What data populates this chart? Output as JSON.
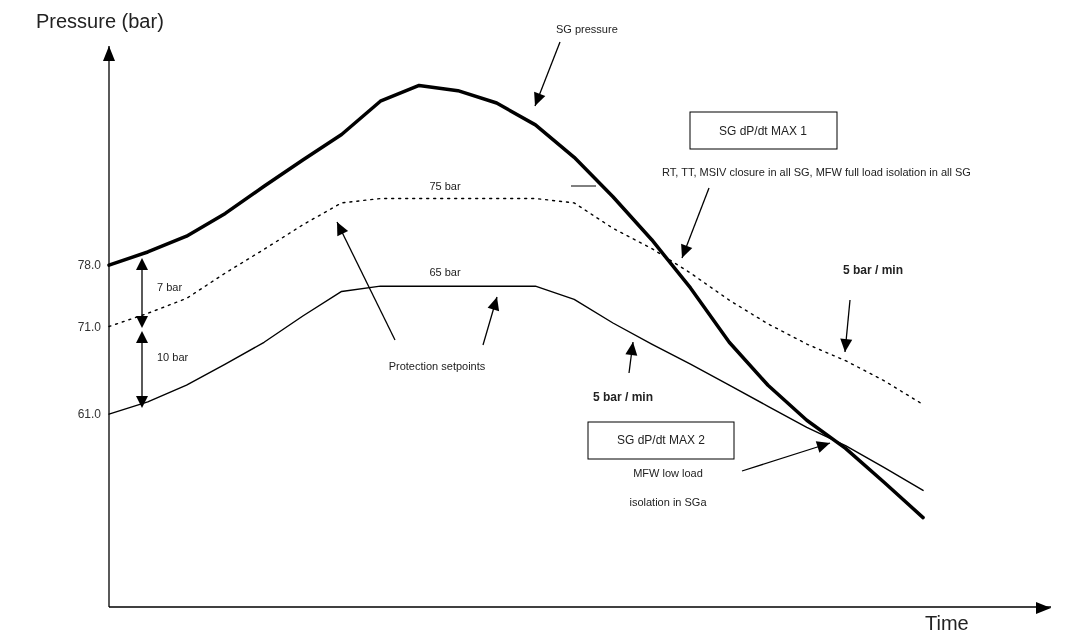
{
  "chart_data": {
    "type": "line",
    "ylabel": "Pressure (bar)",
    "xlabel": "Time",
    "categories": [
      null,
      null,
      null,
      null,
      null,
      null,
      null,
      null,
      null,
      null,
      null,
      null,
      null,
      null,
      null,
      null,
      null,
      null,
      null,
      null,
      null,
      null
    ],
    "ylim": [
      39,
      103
    ],
    "yticks": [
      {
        "value": 61,
        "label": "61.0"
      },
      {
        "value": 71,
        "label": "71.0"
      },
      {
        "value": 78,
        "label": "78.0"
      }
    ],
    "tick_labels": "y",
    "grid": false,
    "marker": "none",
    "series": [
      {
        "color": "#000000",
        "line_style": "solid",
        "values": [
          78.0,
          79.5,
          81.3,
          83.9,
          87.0,
          90.0,
          92.9,
          96.7,
          98.5,
          97.9,
          96.5,
          94.0,
          90.3,
          85.8,
          80.9,
          75.4,
          69.2,
          64.3,
          60.3,
          57.1,
          53.2,
          49.2
        ]
      },
      {
        "color": "#000000",
        "line_style": "dotted",
        "values": [
          71.0,
          72.5,
          74.2,
          77.1,
          79.8,
          82.6,
          85.1,
          85.6,
          85.6,
          85.6,
          85.6,
          85.6,
          85.1,
          82.2,
          79.9,
          77.1,
          74.0,
          71.3,
          69.0,
          67.1,
          64.8,
          62.1
        ]
      },
      {
        "color": "#000000",
        "line_style": "solid",
        "values": [
          61.0,
          62.4,
          64.3,
          66.7,
          69.2,
          72.2,
          75.0,
          75.6,
          75.6,
          75.6,
          75.6,
          75.6,
          74.1,
          71.4,
          69.0,
          66.7,
          64.3,
          61.9,
          59.5,
          57.4,
          54.9,
          52.3
        ]
      }
    ],
    "annotations": [
      "SG pressure",
      "SG dP/dt MAX 1",
      "RT, TT, MSIV closure in all SG, MFW full load isolation in all SG",
      "5 bar / min",
      "7 bar",
      "10 bar",
      "75 bar",
      "65 bar",
      "Protection setpoints",
      "5 bar / min",
      "SG dP/dt MAX 2",
      "MFW low load isolation in SGa"
    ]
  }
}
